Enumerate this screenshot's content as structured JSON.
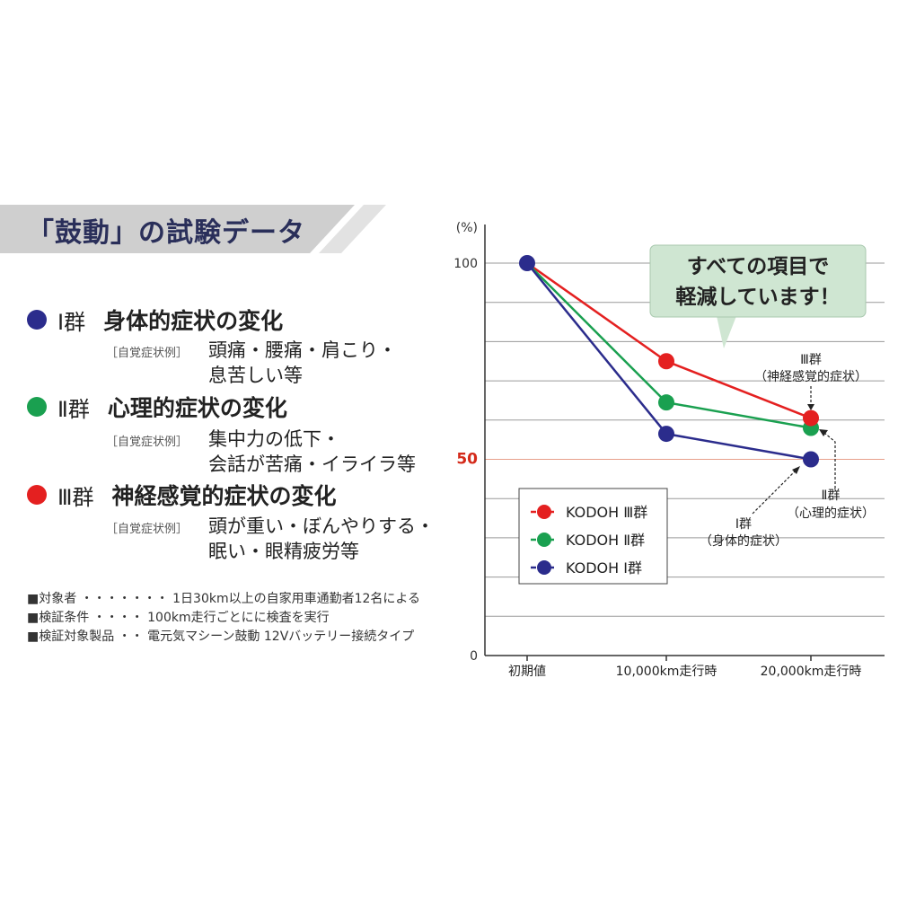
{
  "banner": {
    "title": "「鼓動」の試験データ"
  },
  "groups": [
    {
      "roman": "Ⅰ群",
      "title": "身体的症状の変化",
      "color": "#2b2c8c",
      "example_label": "［自覚症状例］",
      "example_lines": [
        "頭痛・腰痛・肩こり・",
        "息苦しい等"
      ]
    },
    {
      "roman": "Ⅱ群",
      "title": "心理的症状の変化",
      "color": "#1aa050",
      "example_label": "［自覚症状例］",
      "example_lines": [
        "集中力の低下・",
        "会話が苦痛・イライラ等"
      ]
    },
    {
      "roman": "Ⅲ群",
      "title": "神経感覚的症状の変化",
      "color": "#e42020",
      "example_label": "［自覚症状例］",
      "example_lines": [
        "頭が重い・ぼんやりする・",
        "眠い・眼精疲労等"
      ]
    }
  ],
  "notes": [
    "■対象者 ・・・・・・・ 1日30km以上の自家用車通勤者12名による",
    "■検証条件 ・・・・ 100km走行ごとにに検査を実行",
    "■検証対象製品 ・・ 電元気マシーン鼓動 12Vバッテリー接続タイプ"
  ],
  "chart_data": {
    "type": "line",
    "categories": [
      "初期値",
      "10,000km走行時",
      "20,000km走行時"
    ],
    "y_unit": "(%)",
    "ylim": [
      0,
      100
    ],
    "y_ticks": [
      "0",
      "50",
      "100"
    ],
    "highlight_tick": "50",
    "highlight_color": "#d42a1a",
    "grid": true,
    "series": [
      {
        "name": "KODOH Ⅲ群",
        "color": "#e42020",
        "values": [
          100,
          75,
          60.5
        ]
      },
      {
        "name": "KODOH Ⅱ群",
        "color": "#1aa050",
        "values": [
          100,
          64.5,
          58
        ]
      },
      {
        "name": "KODOH Ⅰ群",
        "color": "#2b2c8c",
        "values": [
          100,
          56.5,
          50
        ]
      }
    ],
    "legend_position": "bottom-left",
    "callout": {
      "lines": [
        "すべての項目で",
        "軽減しています！"
      ],
      "color": "#cfe6d2"
    },
    "annotations": [
      {
        "lines": [
          "Ⅲ群",
          "（神経感覚的症状）"
        ]
      },
      {
        "lines": [
          "Ⅱ群",
          "（心理的症状）"
        ]
      },
      {
        "lines": [
          "Ⅰ群",
          "（身体的症状）"
        ]
      }
    ]
  }
}
